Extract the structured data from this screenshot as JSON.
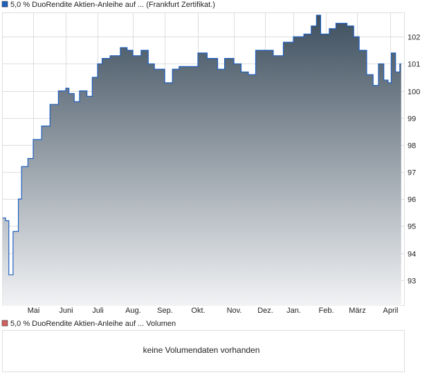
{
  "chart_data": {
    "type": "area",
    "title": "5,0 % DuoRendite Aktien-Anleihe auf ... (Frankfurt Zertifikat.)",
    "ylim": [
      92.05,
      102.9
    ],
    "yticks": [
      93,
      94,
      95,
      96,
      97,
      98,
      99,
      100,
      101,
      102
    ],
    "xticks": [
      "Mai",
      "Juni",
      "Juli",
      "Aug.",
      "Sep.",
      "Okt.",
      "Nov.",
      "Dez.",
      "Jan.",
      "Feb.",
      "März",
      "April"
    ],
    "grid": true,
    "legend": "top-left",
    "colors": {
      "line": "#1f5fbf",
      "fill_top": "#3e4f5e",
      "fill_bottom": "#f2f3f5",
      "grid": "#dddddd",
      "legend_price": "#1f5fbf",
      "legend_volume": "#d06060"
    },
    "x": [
      "02.04.",
      "05.04.",
      "08.04.",
      "12.04.",
      "17.04.",
      "20.04.",
      "26.04.",
      "01.05.",
      "09.05.",
      "17.05.",
      "25.05.",
      "01.06.",
      "04.06.",
      "09.06.",
      "14.06.",
      "21.06.",
      "26.06.",
      "01.07.",
      "05.07.",
      "12.07.",
      "21.07.",
      "27.07.",
      "01.08.",
      "09.08.",
      "16.08.",
      "22.08.",
      "01.09.",
      "08.09.",
      "14.09.",
      "24.09.",
      "01.10.",
      "09.10.",
      "18.10.",
      "24.10.",
      "01.11.",
      "08.11.",
      "15.11.",
      "22.11.",
      "01.12.",
      "10.12.",
      "21.12.",
      "01.01.",
      "11.01.",
      "18.01.",
      "23.01.",
      "27.01.",
      "04.02.",
      "10.02.",
      "20.02.",
      "26.02.",
      "03.03.",
      "10.03.",
      "16.03.",
      "21.03.",
      "26.03.",
      "30.03.",
      "02.04.",
      "06.04.",
      "10.04."
    ],
    "values": [
      95.3,
      95.2,
      93.2,
      94.8,
      96.0,
      97.2,
      97.5,
      98.2,
      98.7,
      99.5,
      100.0,
      100.1,
      99.9,
      99.6,
      100.0,
      99.8,
      100.5,
      101.0,
      101.2,
      101.3,
      101.6,
      101.5,
      101.3,
      101.5,
      101.0,
      100.8,
      100.3,
      100.8,
      100.9,
      100.9,
      101.4,
      101.2,
      100.8,
      101.2,
      101.0,
      100.7,
      100.6,
      101.5,
      101.5,
      101.3,
      101.8,
      102.0,
      102.1,
      102.4,
      102.8,
      102.1,
      102.3,
      102.5,
      102.4,
      102.0,
      101.5,
      100.6,
      100.2,
      101.0,
      100.4,
      100.3,
      101.4,
      100.7,
      101.0
    ]
  },
  "volume": {
    "title": "5,0 % DuoRendite Aktien-Anleihe auf ... Volumen",
    "empty_message": "keine Volumendaten vorhanden"
  }
}
